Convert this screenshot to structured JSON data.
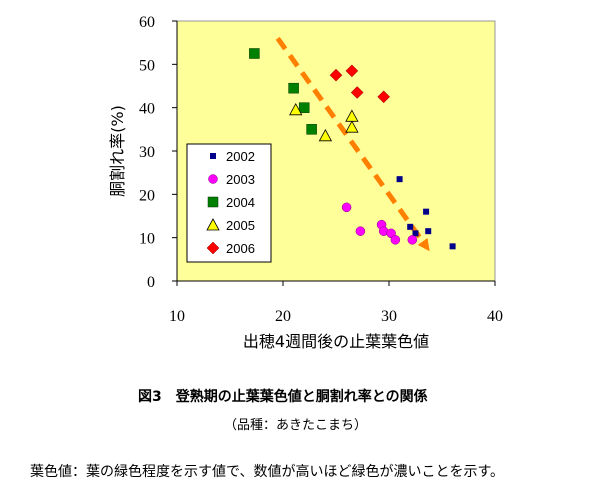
{
  "chart_data": {
    "type": "scatter",
    "xlabel": "出穂4週間後の止葉葉色値",
    "ylabel": "胴割れ率(%)",
    "xlim": [
      10,
      40
    ],
    "ylim": [
      0,
      60
    ],
    "xticks": [
      10,
      20,
      30,
      40
    ],
    "yticks": [
      0,
      10,
      20,
      30,
      40,
      50,
      60
    ],
    "grid": false,
    "plot_background": "#FFFF99",
    "legend_position": "left-middle inside plot",
    "series": [
      {
        "name": "2002",
        "marker": "small-square",
        "color": "#00008B",
        "points": [
          [
            31.0,
            23.5
          ],
          [
            32.0,
            12.5
          ],
          [
            32.5,
            11.0
          ],
          [
            33.5,
            16.0
          ],
          [
            33.7,
            11.5
          ],
          [
            36.0,
            8.0
          ]
        ]
      },
      {
        "name": "2003",
        "marker": "circle",
        "color": "#FF00FF",
        "points": [
          [
            26.0,
            17.0
          ],
          [
            27.3,
            11.5
          ],
          [
            29.3,
            13.0
          ],
          [
            29.5,
            11.5
          ],
          [
            30.2,
            11.0
          ],
          [
            30.6,
            9.5
          ],
          [
            32.2,
            9.5
          ]
        ]
      },
      {
        "name": "2004",
        "marker": "square",
        "color": "#008000",
        "points": [
          [
            17.3,
            52.5
          ],
          [
            21.0,
            44.5
          ],
          [
            22.0,
            40.0
          ],
          [
            22.7,
            35.0
          ]
        ]
      },
      {
        "name": "2005",
        "marker": "triangle",
        "color": "#FFFF00",
        "points": [
          [
            21.2,
            39.5
          ],
          [
            24.0,
            33.5
          ],
          [
            26.5,
            35.5
          ],
          [
            26.5,
            38.0
          ]
        ]
      },
      {
        "name": "2006",
        "marker": "diamond",
        "color": "#FF0000",
        "points": [
          [
            25.0,
            47.5
          ],
          [
            26.5,
            48.5
          ],
          [
            27.0,
            43.5
          ],
          [
            29.5,
            42.5
          ]
        ]
      }
    ],
    "trend_line": {
      "style": "dashed-arrow",
      "color": "#FF8000",
      "from": [
        19.5,
        56.0
      ],
      "to": [
        33.5,
        8.0
      ]
    }
  },
  "caption": {
    "title": "図3　登熟期の止葉葉色値と胴割れ率との関係",
    "subtitle": "（品種：あきたこまち）",
    "note": "葉色値：葉の緑色程度を示す値で、数値が高いほど緑色が濃いことを示す。"
  }
}
